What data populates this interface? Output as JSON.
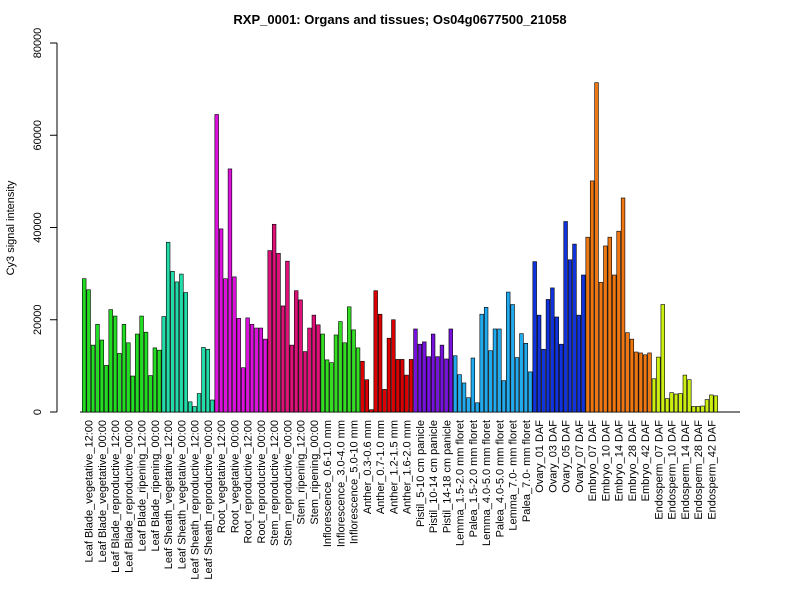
{
  "chart_data": {
    "type": "bar",
    "title": "RXP_0001: Organs and tissues; Os04g0677500_21058",
    "y_label": "Cy3 signal intensity",
    "ylim": [
      0,
      80000
    ],
    "yticks": [
      0,
      20000,
      40000,
      60000,
      80000
    ],
    "categories": [
      null,
      "Leaf Blade_vegetative_12:00",
      null,
      null,
      "Leaf Blade_vegetative_00:00",
      null,
      null,
      "Leaf Blade_reproductive_12:00",
      null,
      null,
      "Leaf Blade_reproductive_00:00",
      null,
      null,
      "Leaf Blade_ripening_12:00",
      null,
      null,
      "Leaf Blade_ripening_00:00",
      null,
      null,
      "Leaf Sheath_vegetative_12:00",
      null,
      null,
      "Leaf Sheath_vegetative_00:00",
      null,
      null,
      "Leaf Sheath_reproductive_12:00",
      null,
      null,
      "Leaf Sheath_reproductive_00:00",
      null,
      null,
      "Root_vegetative_12:00",
      null,
      null,
      "Root_vegetative_00:00",
      null,
      null,
      "Root_reproductive_12:00",
      null,
      null,
      "Root_reproductive_00:00",
      null,
      null,
      "Stem_reproductive_12:00",
      null,
      null,
      "Stem_reproductive_00:00",
      null,
      null,
      "Stem_ripening_12:00",
      null,
      null,
      "Stem_ripening_00:00",
      null,
      null,
      "Inflorescence_0.6-1.0 mm",
      null,
      null,
      "Inflorescence_3.0-4.0 mm",
      null,
      null,
      "Inflorescence_5.0-10 mm",
      null,
      null,
      "Anther_0.3-0.6 mm",
      null,
      null,
      "Anther_0.7-1.0 mm",
      null,
      null,
      "Anther_1.2-1.5 mm",
      null,
      null,
      "Anther_1.6-2.0 mm",
      null,
      null,
      "Pistil_5-10 cm panicle",
      null,
      null,
      "Pistil_10-14 cm panicle",
      null,
      null,
      "Pistil_14-18 cm panicle",
      null,
      null,
      "Lemma_1.5-2.0 mm floret",
      null,
      null,
      "Palea_1.5-2.0 mm floret",
      null,
      null,
      "Lemma_4.0-5.0 mm floret",
      null,
      null,
      "Palea_4.0-5.0 mm floret",
      null,
      null,
      "Lemma_7.0- mm floret",
      null,
      null,
      "Palea_7.0- mm floret",
      null,
      null,
      "Ovary_01 DAF",
      null,
      null,
      "Ovary_03 DAF",
      null,
      null,
      "Ovary_05 DAF",
      null,
      null,
      "Ovary_07 DAF",
      null,
      null,
      "Embryo_07 DAF",
      null,
      null,
      "Embryo_10 DAF",
      null,
      null,
      "Embryo_14 DAF",
      null,
      null,
      "Embryo_28 DAF",
      null,
      null,
      "Embryo_42 DAF",
      null,
      null,
      "Endosperm_07 DAF",
      null,
      null,
      "Endosperm_10 DAF",
      null,
      null,
      "Endosperm_14 DAF",
      null,
      null,
      "Endosperm_28 DAF",
      null,
      null,
      "Endosperm_42 DAF",
      null
    ],
    "values": [
      28900,
      26500,
      14500,
      19000,
      15600,
      10100,
      22200,
      20800,
      12700,
      19000,
      15000,
      7800,
      16900,
      20800,
      17300,
      7900,
      13900,
      13400,
      20700,
      36800,
      30500,
      28200,
      29900,
      25900,
      2200,
      1200,
      4000,
      14000,
      13600,
      2600,
      64500,
      39700,
      28900,
      52700,
      29300,
      20300,
      9600,
      20400,
      19000,
      18200,
      18200,
      15800,
      35000,
      40700,
      34400,
      23000,
      32700,
      14500,
      26300,
      24300,
      13100,
      18200,
      21000,
      18900,
      16900,
      11300,
      10700,
      16700,
      19600,
      15000,
      22800,
      17800,
      13900,
      11000,
      7000,
      500,
      26300,
      21200,
      4900,
      16000,
      20000,
      11400,
      11400,
      8000,
      11400,
      18000,
      14700,
      15200,
      12000,
      16900,
      12000,
      14500,
      11500,
      18000,
      12200,
      8100,
      6300,
      3100,
      11700,
      2000,
      21200,
      22700,
      13300,
      18000,
      18000,
      6800,
      26000,
      23300,
      11800,
      17000,
      14900,
      8700,
      32600,
      21000,
      13600,
      24400,
      26900,
      20600,
      14700,
      41300,
      33000,
      36400,
      21000,
      29700,
      37900,
      50100,
      71400,
      28100,
      36000,
      37900,
      29700,
      39200,
      46400,
      17200,
      15800,
      13000,
      12800,
      12400,
      12800,
      7200,
      11900,
      23300,
      2900,
      4200,
      3900,
      4000,
      8000,
      7000,
      1200,
      1200,
      1300,
      2700,
      3700,
      3500
    ],
    "colors": [
      "#22dd22",
      "#22dd22",
      "#22dd22",
      "#22dd22",
      "#22dd22",
      "#22dd22",
      "#22dd22",
      "#22dd22",
      "#22dd22",
      "#22dd22",
      "#22dd22",
      "#22dd22",
      "#22dd22",
      "#22dd22",
      "#22dd22",
      "#22dd22",
      "#22dd22",
      "#22dd22",
      "#22ddaa",
      "#22ddaa",
      "#22ddaa",
      "#22ddaa",
      "#22ddaa",
      "#22ddaa",
      "#22ddaa",
      "#22ddaa",
      "#22ddaa",
      "#22ddaa",
      "#22ddaa",
      "#22ddaa",
      "#dd11dd",
      "#dd11dd",
      "#dd11dd",
      "#dd11dd",
      "#dd11dd",
      "#dd11dd",
      "#dd11dd",
      "#dd11dd",
      "#dd11dd",
      "#dd11dd",
      "#dd11dd",
      "#dd11dd",
      "#dd1177",
      "#dd1177",
      "#dd1177",
      "#dd1177",
      "#dd1177",
      "#dd1177",
      "#dd1177",
      "#dd1177",
      "#dd1177",
      "#dd1177",
      "#dd1177",
      "#dd1177",
      "#33dd22",
      "#33dd22",
      "#33dd22",
      "#33dd22",
      "#33dd22",
      "#33dd22",
      "#33dd22",
      "#33dd22",
      "#33dd22",
      "#dd0000",
      "#dd0000",
      "#dd0000",
      "#dd0000",
      "#dd0000",
      "#dd0000",
      "#dd0000",
      "#dd0000",
      "#dd0000",
      "#dd0000",
      "#dd0000",
      "#dd0000",
      "#7711dd",
      "#7711dd",
      "#7711dd",
      "#7711dd",
      "#7711dd",
      "#7711dd",
      "#7711dd",
      "#7711dd",
      "#7711dd",
      "#22aaee",
      "#22aaee",
      "#22aaee",
      "#22aaee",
      "#22aaee",
      "#22aaee",
      "#22aaee",
      "#22aaee",
      "#22aaee",
      "#22aaee",
      "#22aaee",
      "#22aaee",
      "#22aaee",
      "#22aaee",
      "#22aaee",
      "#22aaee",
      "#22aaee",
      "#22aaee",
      "#1133dd",
      "#1133dd",
      "#1133dd",
      "#1133dd",
      "#1133dd",
      "#1133dd",
      "#1133dd",
      "#1133dd",
      "#1133dd",
      "#1133dd",
      "#1133dd",
      "#1133dd",
      "#ee7711",
      "#ee7711",
      "#ee7711",
      "#ee7711",
      "#ee7711",
      "#ee7711",
      "#ee7711",
      "#ee7711",
      "#ee7711",
      "#ee7711",
      "#ee7711",
      "#ee7711",
      "#ee7711",
      "#ee7711",
      "#ee7711",
      "#ccee11",
      "#ccee11",
      "#ccee11",
      "#ccee11",
      "#ccee11",
      "#ccee11",
      "#ccee11",
      "#ccee11",
      "#ccee11",
      "#ccee11",
      "#ccee11",
      "#ccee11",
      "#ccee11",
      "#ccee11",
      "#ccee11"
    ]
  }
}
